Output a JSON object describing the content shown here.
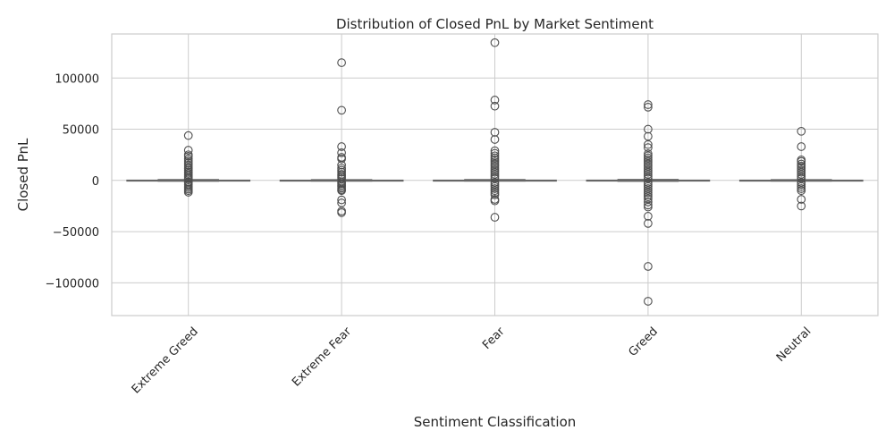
{
  "chart_data": {
    "type": "box",
    "title": "Distribution of Closed PnL by Market Sentiment",
    "xlabel": "Sentiment Classification",
    "ylabel": "Closed PnL",
    "ylim": [
      -132000,
      143000
    ],
    "yticks": [
      -100000,
      -50000,
      0,
      50000,
      100000
    ],
    "ytick_labels": [
      "−100000",
      "−50000",
      "0",
      "50000",
      "100000"
    ],
    "grid": true,
    "categories": [
      "Extreme Greed",
      "Extreme Fear",
      "Fear",
      "Greed",
      "Neutral"
    ],
    "boxes": [
      {
        "name": "Extreme Greed",
        "whisker_low": -600,
        "q1": -50,
        "median": 0,
        "q3": 80,
        "whisker_high": 700,
        "outliers": [
          43800,
          29500,
          25000,
          23500,
          21000,
          19000,
          17000,
          15000,
          13000,
          11500,
          10000,
          8500,
          7000,
          5500,
          4000,
          2500,
          1500,
          -1500,
          -2500,
          -4000,
          -5500,
          -7000,
          -8500,
          -10000,
          -11500
        ]
      },
      {
        "name": "Extreme Fear",
        "whisker_low": -500,
        "q1": -40,
        "median": 0,
        "q3": 60,
        "whisker_high": 600,
        "outliers": [
          115000,
          68500,
          33000,
          27000,
          22500,
          21000,
          15000,
          12000,
          10000,
          8000,
          6000,
          4500,
          3000,
          1500,
          -1500,
          -3000,
          -4500,
          -6000,
          -7500,
          -9000,
          -10000,
          -19000,
          -22000,
          -30000,
          -31500
        ]
      },
      {
        "name": "Fear",
        "whisker_low": -500,
        "q1": -40,
        "median": 0,
        "q3": 70,
        "whisker_high": 650,
        "outliers": [
          134500,
          78500,
          72500,
          47000,
          40000,
          29000,
          26500,
          24000,
          22000,
          20000,
          18000,
          16000,
          14000,
          12000,
          10000,
          8000,
          6000,
          4000,
          2000,
          -2000,
          -4000,
          -6000,
          -8000,
          -10000,
          -12000,
          -14000,
          -18500,
          -20000,
          -36000
        ]
      },
      {
        "name": "Greed",
        "whisker_low": -700,
        "q1": -60,
        "median": 0,
        "q3": 90,
        "whisker_high": 800,
        "outliers": [
          74000,
          71500,
          50000,
          43000,
          35000,
          32000,
          26000,
          24000,
          22000,
          20000,
          18000,
          16000,
          14000,
          12000,
          10000,
          8000,
          6000,
          4000,
          2000,
          -2000,
          -4000,
          -6000,
          -8000,
          -10000,
          -12000,
          -14000,
          -16000,
          -18000,
          -21000,
          -24000,
          -26000,
          -35000,
          -42000,
          -84000,
          -118000
        ]
      },
      {
        "name": "Neutral",
        "whisker_low": -500,
        "q1": -40,
        "median": 0,
        "q3": 60,
        "whisker_high": 600,
        "outliers": [
          48000,
          33000,
          20000,
          18500,
          16000,
          14000,
          12000,
          10000,
          8000,
          6000,
          4000,
          2000,
          -2000,
          -4000,
          -6000,
          -8000,
          -10000,
          -18500,
          -25000
        ]
      }
    ]
  }
}
